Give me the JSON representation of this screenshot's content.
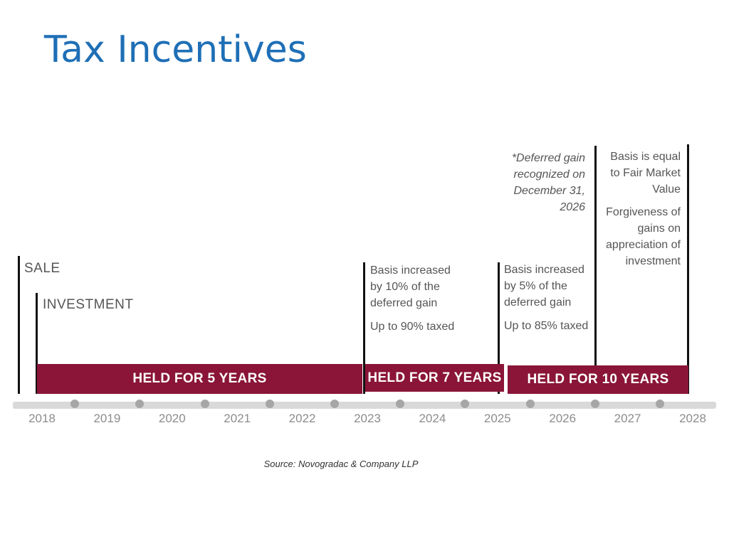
{
  "title": "Tax Incentives",
  "colors": {
    "title": "#1e6fb6",
    "bar": "#8a1538",
    "axis": "#d9d9d9",
    "dot": "#a6a6a6"
  },
  "events": {
    "sale": "SALE",
    "investment": "INVESTMENT"
  },
  "annotations": {
    "year7_line1": "Basis increased",
    "year7_line2": "by 10% of the",
    "year7_line3": "deferred gain",
    "year7_tax": "Up to 90% taxed",
    "year5_line1": "Basis increased",
    "year5_line2": "by 5% of the",
    "year5_line3": "deferred gain",
    "year5_tax": "Up to 85% taxed",
    "deferred_line1": "*Deferred gain",
    "deferred_line2": "recognized on",
    "deferred_line3": "December 31,",
    "deferred_line4": "2026",
    "basis_line1": "Basis is equal",
    "basis_line2": "to Fair Market",
    "basis_line3": "Value",
    "forgive_line1": "Forgiveness of",
    "forgive_line2": "gains on",
    "forgive_line3": "appreciation of",
    "forgive_line4": "investment"
  },
  "bars": {
    "held5": "HELD FOR 5 YEARS",
    "held7": "HELD FOR 7 YEARS",
    "held10": "HELD FOR 10 YEARS"
  },
  "timeline": {
    "years": [
      "2018",
      "2019",
      "2020",
      "2021",
      "2022",
      "2023",
      "2024",
      "2025",
      "2026",
      "2027",
      "2028"
    ]
  },
  "source": "Source: Novogradac & Company LLP"
}
